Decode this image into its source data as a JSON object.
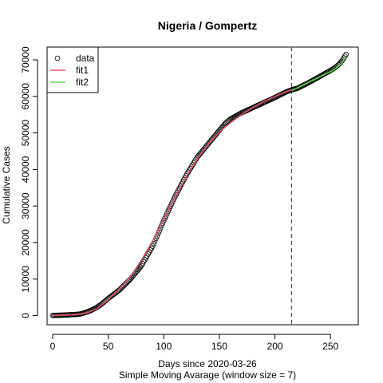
{
  "chart_data": {
    "type": "scatter",
    "title": "Nigeria / Gompertz",
    "xlabel": "Days since 2020-03-26",
    "xlabel2": "Simple Moving Avarage (window size = 7)",
    "ylabel": "Cumulative Cases",
    "xlim": [
      -5,
      275
    ],
    "ylim": [
      -2500,
      73500
    ],
    "x_ticks": [
      0,
      50,
      100,
      150,
      200,
      250
    ],
    "x_tick_labels": [
      "0",
      "50",
      "100",
      "150",
      "200",
      "250"
    ],
    "y_ticks": [
      0,
      10000,
      20000,
      30000,
      40000,
      50000,
      60000,
      70000
    ],
    "y_tick_labels": [
      "0",
      "10000",
      "20000",
      "30000",
      "40000",
      "50000",
      "60000",
      "70000"
    ],
    "grid": false,
    "legend_position": "top-left",
    "legend": [
      {
        "label": "data",
        "kind": "circle",
        "color": "#000000"
      },
      {
        "label": "fit1",
        "kind": "line",
        "color": "#DF536B"
      },
      {
        "label": "fit2",
        "kind": "line",
        "color": "#61D04F"
      }
    ],
    "vline": {
      "x": 215,
      "style": "dashed",
      "color": "#555555"
    },
    "data_curve": [
      [
        0,
        50
      ],
      [
        10,
        150
      ],
      [
        20,
        300
      ],
      [
        25,
        450
      ],
      [
        30,
        900
      ],
      [
        35,
        1500
      ],
      [
        40,
        2300
      ],
      [
        45,
        3400
      ],
      [
        50,
        4700
      ],
      [
        60,
        7000
      ],
      [
        70,
        10000
      ],
      [
        80,
        13700
      ],
      [
        90,
        19000
      ],
      [
        100,
        26000
      ],
      [
        110,
        32500
      ],
      [
        120,
        38300
      ],
      [
        130,
        43300
      ],
      [
        140,
        47000
      ],
      [
        150,
        50700
      ],
      [
        155,
        52500
      ],
      [
        160,
        53800
      ],
      [
        170,
        55500
      ],
      [
        180,
        56900
      ],
      [
        190,
        58300
      ],
      [
        200,
        59700
      ],
      [
        210,
        61200
      ],
      [
        215,
        61800
      ],
      [
        220,
        62200
      ],
      [
        230,
        63700
      ],
      [
        240,
        65400
      ],
      [
        250,
        67100
      ],
      [
        255,
        68100
      ],
      [
        258,
        68900
      ],
      [
        261,
        70000
      ],
      [
        264,
        71500
      ]
    ],
    "series": [
      {
        "name": "fit1",
        "color": "#DF536B",
        "points": [
          [
            0,
            50
          ],
          [
            20,
            250
          ],
          [
            30,
            650
          ],
          [
            40,
            1900
          ],
          [
            50,
            4300
          ],
          [
            60,
            7300
          ],
          [
            70,
            10700
          ],
          [
            80,
            15200
          ],
          [
            90,
            20500
          ],
          [
            100,
            26500
          ],
          [
            110,
            32300
          ],
          [
            120,
            37900
          ],
          [
            130,
            42800
          ],
          [
            140,
            46900
          ],
          [
            150,
            50200
          ],
          [
            160,
            52800
          ],
          [
            170,
            55000
          ],
          [
            180,
            56900
          ],
          [
            190,
            58600
          ],
          [
            200,
            60000
          ],
          [
            210,
            61300
          ],
          [
            215,
            61800
          ]
        ]
      },
      {
        "name": "fit2",
        "color": "#61D04F",
        "points": [
          [
            215,
            61600
          ],
          [
            220,
            62300
          ],
          [
            230,
            63800
          ],
          [
            240,
            65300
          ],
          [
            250,
            66800
          ],
          [
            255,
            67700
          ],
          [
            260,
            69000
          ],
          [
            264,
            70900
          ]
        ]
      }
    ]
  }
}
